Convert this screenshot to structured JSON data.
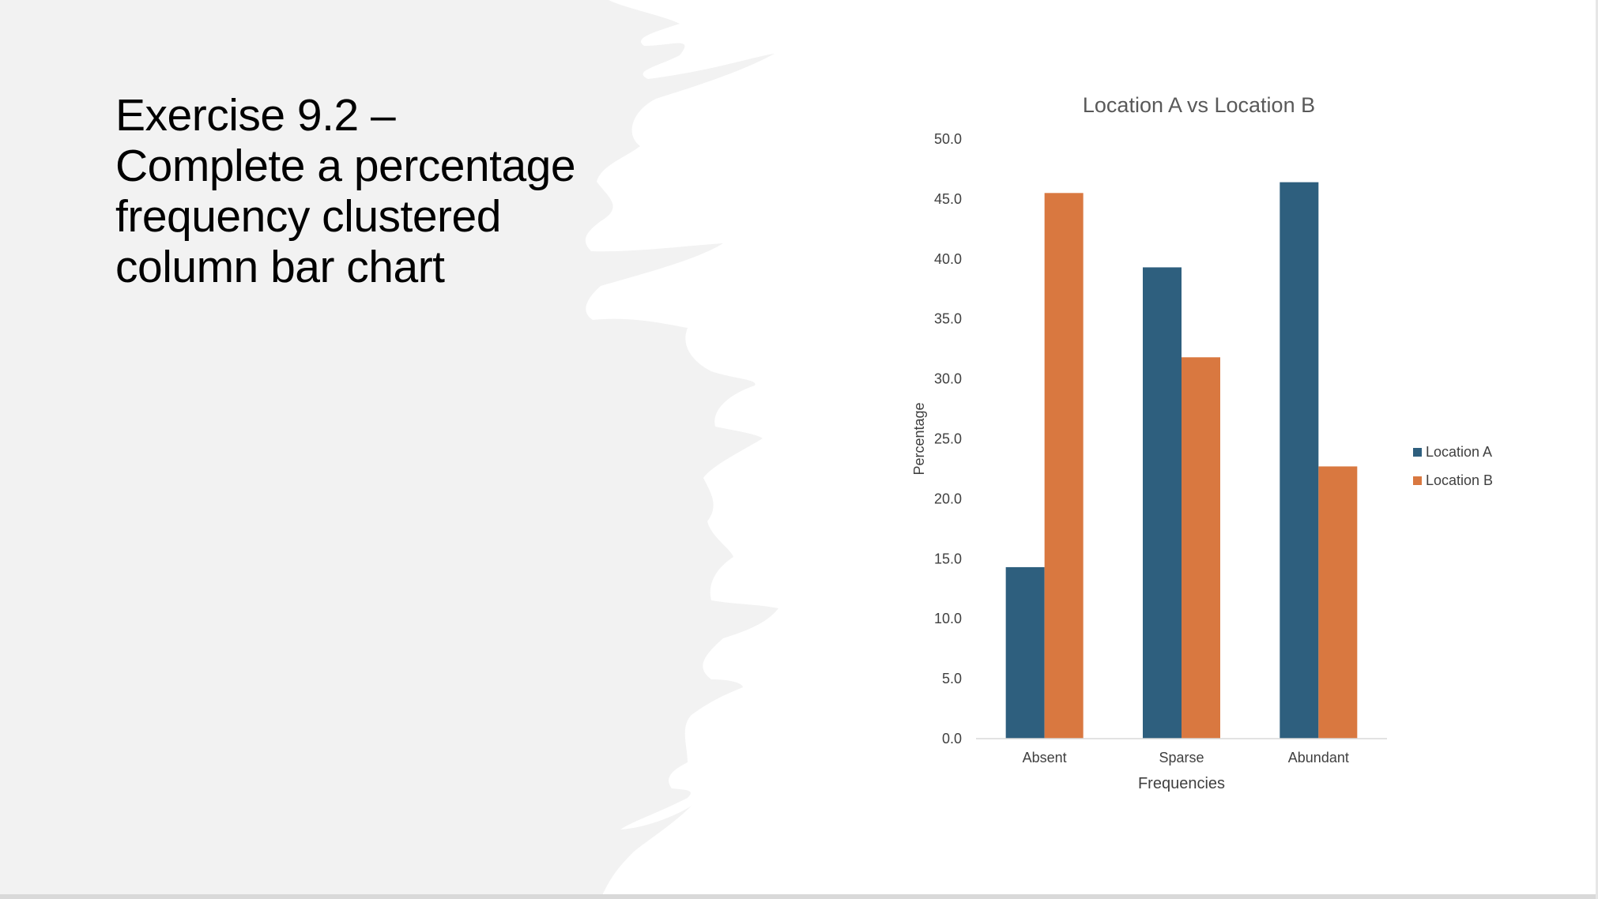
{
  "slide": {
    "title": "Exercise 9.2 – Complete a percentage frequency clustered column bar chart"
  },
  "colors": {
    "panel": "#f2f2f2",
    "location_a": "#2e5f7e",
    "location_b": "#d97840"
  },
  "chart_data": {
    "type": "bar",
    "title": "Location A vs Location B",
    "xlabel": "Frequencies",
    "ylabel": "Percentage",
    "categories": [
      "Absent",
      "Sparse",
      "Abundant"
    ],
    "series": [
      {
        "name": "Location A",
        "values": [
          14.3,
          39.3,
          46.4
        ]
      },
      {
        "name": "Location B",
        "values": [
          45.5,
          31.8,
          22.7
        ]
      }
    ],
    "ylim": [
      0,
      50
    ],
    "yticks": [
      "0.0",
      "5.0",
      "10.0",
      "15.0",
      "20.0",
      "25.0",
      "30.0",
      "35.0",
      "40.0",
      "45.0",
      "50.0"
    ],
    "grid": false,
    "legend": "right"
  }
}
